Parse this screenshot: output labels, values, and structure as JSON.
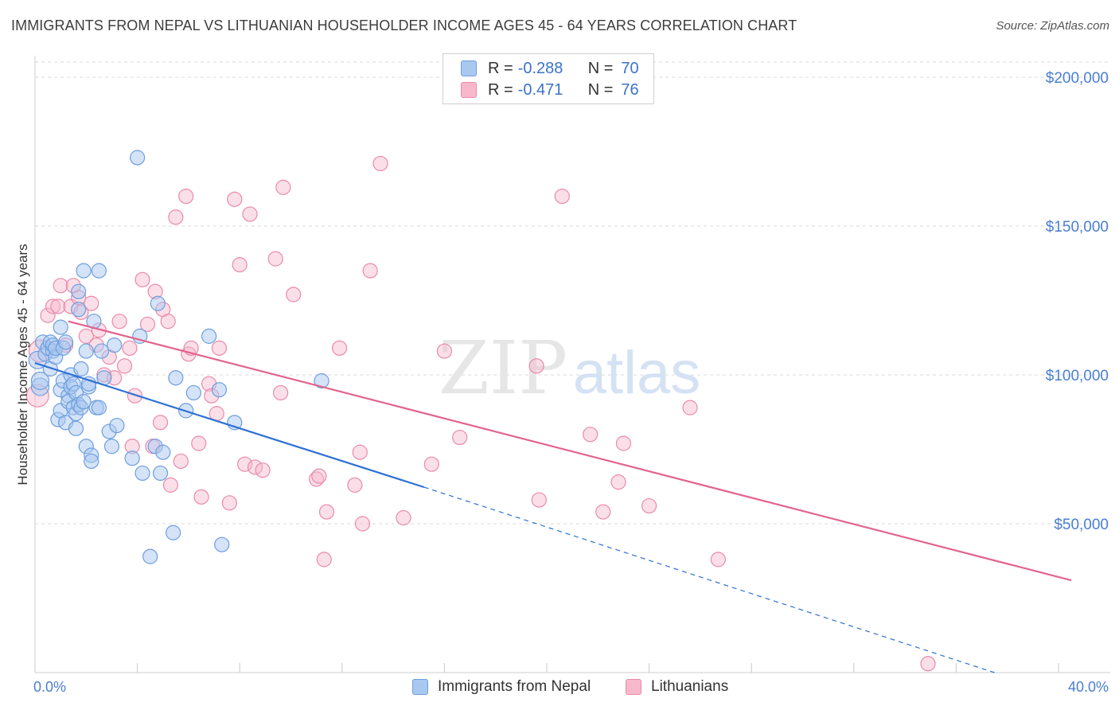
{
  "title": "IMMIGRANTS FROM NEPAL VS LITHUANIAN HOUSEHOLDER INCOME AGES 45 - 64 YEARS CORRELATION CHART",
  "source": "Source: ZipAtlas.com",
  "watermark": {
    "zip": "ZIP",
    "atlas": "atlas"
  },
  "colors": {
    "nepal_fill": "#a9c8f0",
    "nepal_stroke": "#6d9edf",
    "nepal_line": "#2f72d4",
    "lith_fill": "#f7b8cc",
    "lith_stroke": "#ea8aa9",
    "lith_line": "#e2648e",
    "tick_text": "#4a7fd0",
    "grid": "#d9d9d9"
  },
  "legend_top": {
    "rows": [
      {
        "r_label": "R =",
        "r_value": "-0.288",
        "n_label": "N =",
        "n_value": "70"
      },
      {
        "r_label": "R =",
        "r_value": "-0.471",
        "n_label": "N =",
        "n_value": "76"
      }
    ]
  },
  "legend_bottom": {
    "series_1": "Immigrants from Nepal",
    "series_2": "Lithuanians"
  },
  "chart_data": {
    "type": "scatter",
    "title": "IMMIGRANTS FROM NEPAL VS LITHUANIAN HOUSEHOLDER INCOME AGES 45 - 64 YEARS CORRELATION CHART",
    "xlabel": "",
    "ylabel": "Householder Income Ages 45 - 64 years",
    "xlim": [
      0,
      40
    ],
    "ylim": [
      0,
      210000
    ],
    "x_tick_labels": [
      "0.0%",
      "40.0%"
    ],
    "y_ticks": [
      50000,
      100000,
      150000,
      200000
    ],
    "y_tick_labels": [
      "$50,000",
      "$100,000",
      "$150,000",
      "$200,000"
    ],
    "grid": true,
    "legend_position": "top-center",
    "series": [
      {
        "name": "Immigrants from Nepal",
        "r": -0.288,
        "n": 70,
        "trend": {
          "x": [
            0,
            15.2
          ],
          "y": [
            104000,
            62300
          ],
          "dashed_extension_to": [
            37.5,
            0
          ]
        },
        "points": [
          [
            0.1,
            105000
          ],
          [
            0.2,
            96000
          ],
          [
            0.2,
            98000
          ],
          [
            0.3,
            111000
          ],
          [
            0.4,
            107000
          ],
          [
            0.5,
            109000
          ],
          [
            0.6,
            102000
          ],
          [
            0.6,
            111000
          ],
          [
            0.7,
            108000
          ],
          [
            0.7,
            110000
          ],
          [
            0.8,
            106000
          ],
          [
            0.8,
            109000
          ],
          [
            0.9,
            85000
          ],
          [
            1.0,
            95000
          ],
          [
            1.0,
            116000
          ],
          [
            1.0,
            88000
          ],
          [
            1.1,
            109000
          ],
          [
            1.1,
            98000
          ],
          [
            1.2,
            84000
          ],
          [
            1.2,
            111000
          ],
          [
            1.3,
            93000
          ],
          [
            1.3,
            91000
          ],
          [
            1.4,
            100000
          ],
          [
            1.4,
            96000
          ],
          [
            1.5,
            97000
          ],
          [
            1.5,
            89000
          ],
          [
            1.6,
            87000
          ],
          [
            1.6,
            94000
          ],
          [
            1.6,
            82000
          ],
          [
            1.7,
            90000
          ],
          [
            1.7,
            128000
          ],
          [
            1.7,
            122000
          ],
          [
            1.8,
            102000
          ],
          [
            1.8,
            89000
          ],
          [
            1.9,
            135000
          ],
          [
            1.9,
            91000
          ],
          [
            2.0,
            108000
          ],
          [
            2.0,
            76000
          ],
          [
            2.1,
            96000
          ],
          [
            2.1,
            97000
          ],
          [
            2.2,
            73000
          ],
          [
            2.2,
            71000
          ],
          [
            2.3,
            118000
          ],
          [
            2.4,
            89000
          ],
          [
            2.5,
            135000
          ],
          [
            2.5,
            89000
          ],
          [
            2.6,
            108000
          ],
          [
            2.7,
            99000
          ],
          [
            2.9,
            81000
          ],
          [
            3.0,
            76000
          ],
          [
            3.1,
            110000
          ],
          [
            3.2,
            83000
          ],
          [
            3.8,
            72000
          ],
          [
            4.0,
            173000
          ],
          [
            4.1,
            113000
          ],
          [
            4.2,
            67000
          ],
          [
            4.5,
            39000
          ],
          [
            4.7,
            76000
          ],
          [
            4.8,
            124000
          ],
          [
            4.9,
            67000
          ],
          [
            5.0,
            74000
          ],
          [
            5.4,
            47000
          ],
          [
            5.5,
            99000
          ],
          [
            5.9,
            88000
          ],
          [
            6.2,
            94000
          ],
          [
            6.8,
            113000
          ],
          [
            7.2,
            95000
          ],
          [
            7.3,
            43000
          ],
          [
            7.8,
            84000
          ],
          [
            11.2,
            98000
          ]
        ]
      },
      {
        "name": "Lithuanians",
        "r": -0.471,
        "n": 76,
        "trend": {
          "x": [
            1.3,
            40.5
          ],
          "y": [
            118000,
            31000
          ]
        },
        "points": [
          [
            0.1,
            93000
          ],
          [
            0.2,
            108000
          ],
          [
            0.5,
            120000
          ],
          [
            0.7,
            123000
          ],
          [
            0.9,
            123000
          ],
          [
            1.0,
            130000
          ],
          [
            1.2,
            110000
          ],
          [
            1.4,
            123000
          ],
          [
            1.5,
            130000
          ],
          [
            1.7,
            126000
          ],
          [
            1.8,
            121000
          ],
          [
            2.0,
            113000
          ],
          [
            2.2,
            124000
          ],
          [
            2.4,
            110000
          ],
          [
            2.5,
            115000
          ],
          [
            2.7,
            100000
          ],
          [
            2.9,
            106000
          ],
          [
            3.1,
            99000
          ],
          [
            3.3,
            118000
          ],
          [
            3.5,
            103000
          ],
          [
            3.7,
            109000
          ],
          [
            3.8,
            76000
          ],
          [
            3.9,
            93000
          ],
          [
            4.2,
            132000
          ],
          [
            4.4,
            117000
          ],
          [
            4.6,
            76000
          ],
          [
            4.7,
            128000
          ],
          [
            4.9,
            84000
          ],
          [
            5.0,
            122000
          ],
          [
            5.2,
            118000
          ],
          [
            5.3,
            63000
          ],
          [
            5.5,
            153000
          ],
          [
            5.7,
            71000
          ],
          [
            5.9,
            160000
          ],
          [
            6.0,
            107000
          ],
          [
            6.1,
            109000
          ],
          [
            6.4,
            77000
          ],
          [
            6.5,
            59000
          ],
          [
            6.8,
            97000
          ],
          [
            6.9,
            93000
          ],
          [
            7.1,
            87000
          ],
          [
            7.2,
            109000
          ],
          [
            7.6,
            57000
          ],
          [
            7.8,
            159000
          ],
          [
            8.0,
            137000
          ],
          [
            8.2,
            70000
          ],
          [
            8.4,
            154000
          ],
          [
            8.6,
            69000
          ],
          [
            8.9,
            68000
          ],
          [
            9.4,
            139000
          ],
          [
            9.6,
            94000
          ],
          [
            9.7,
            163000
          ],
          [
            10.1,
            127000
          ],
          [
            11.0,
            65000
          ],
          [
            11.1,
            66000
          ],
          [
            11.3,
            38000
          ],
          [
            11.4,
            54000
          ],
          [
            11.9,
            109000
          ],
          [
            12.5,
            63000
          ],
          [
            12.7,
            74000
          ],
          [
            12.8,
            50000
          ],
          [
            13.1,
            135000
          ],
          [
            13.5,
            171000
          ],
          [
            14.4,
            52000
          ],
          [
            15.5,
            70000
          ],
          [
            16.0,
            108000
          ],
          [
            16.6,
            79000
          ],
          [
            19.6,
            103000
          ],
          [
            19.7,
            58000
          ],
          [
            20.6,
            160000
          ],
          [
            21.7,
            80000
          ],
          [
            22.2,
            54000
          ],
          [
            22.8,
            64000
          ],
          [
            23.0,
            77000
          ],
          [
            24.0,
            56000
          ],
          [
            25.6,
            89000
          ],
          [
            26.7,
            38000
          ],
          [
            34.9,
            3000
          ]
        ]
      }
    ]
  }
}
